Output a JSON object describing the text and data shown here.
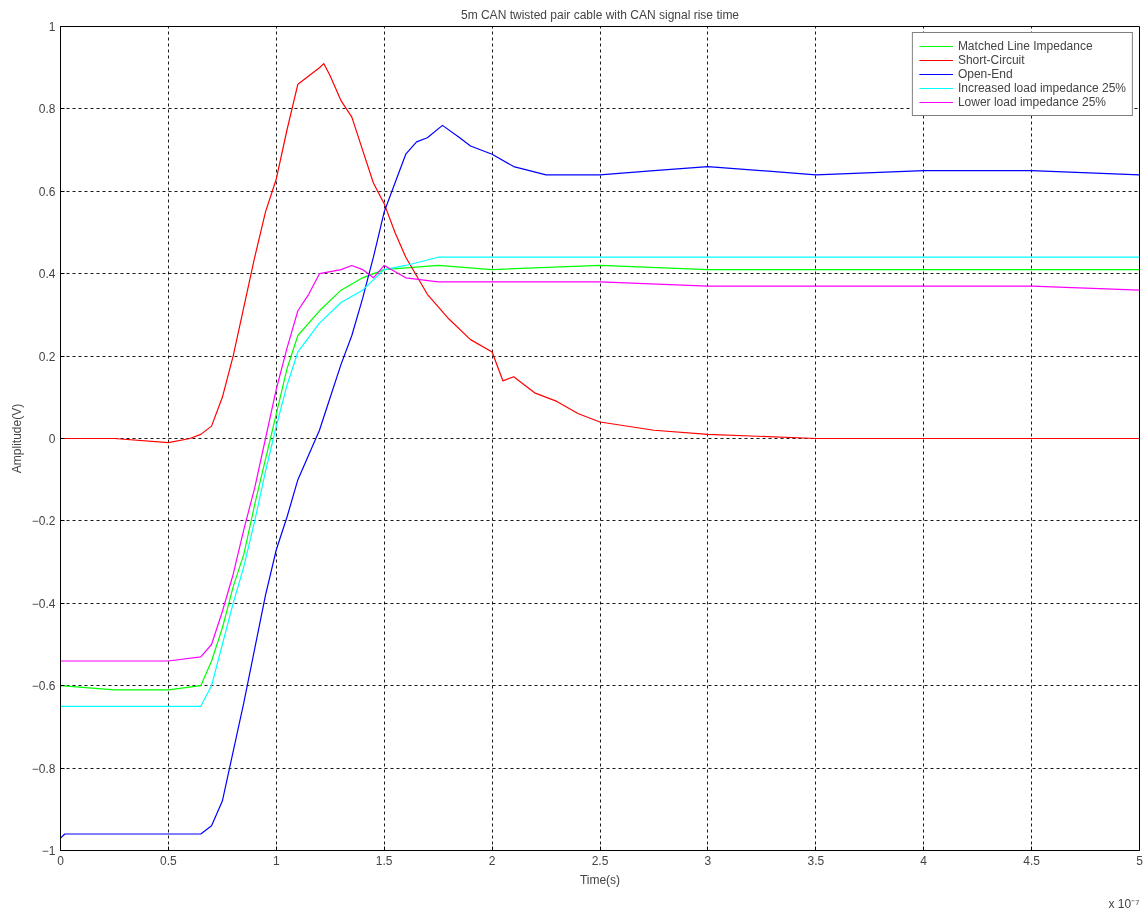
{
  "chart_data": {
    "type": "line",
    "title": "5m CAN twisted pair cable with CAN signal rise time",
    "xlabel": "Time(s)",
    "ylabel": "Amplitude(V)",
    "annotations": [
      "x 10⁻⁷"
    ],
    "xlim": [
      0,
      5
    ],
    "xticks": [
      0,
      0.5,
      1,
      1.5,
      2,
      2.5,
      3,
      3.5,
      4,
      4.5,
      5
    ],
    "ylim": [
      -1,
      1
    ],
    "yticks": [
      -1,
      -0.8,
      -0.6,
      -0.4,
      -0.2,
      0,
      0.2,
      0.4,
      0.6,
      0.8,
      1
    ],
    "grid": true,
    "legend": "top right",
    "line_style": "solid",
    "series": [
      {
        "name": "Matched Line Impedance",
        "color": "#00ff00",
        "x": [
          0,
          0.25,
          0.5,
          0.65,
          0.7,
          0.75,
          0.8,
          0.85,
          0.9,
          0.95,
          1.0,
          1.05,
          1.1,
          1.2,
          1.3,
          1.4,
          1.5,
          1.75,
          2.0,
          2.5,
          3,
          3.5,
          4,
          4.5,
          5
        ],
        "values": [
          -0.6,
          -0.61,
          -0.61,
          -0.6,
          -0.54,
          -0.46,
          -0.36,
          -0.28,
          -0.16,
          -0.05,
          0.06,
          0.17,
          0.25,
          0.31,
          0.36,
          0.39,
          0.41,
          0.42,
          0.41,
          0.42,
          0.41,
          0.41,
          0.41,
          0.41,
          0.41
        ]
      },
      {
        "name": "Short-Circuit",
        "color": "#ff0000",
        "x": [
          0,
          0.25,
          0.5,
          0.6,
          0.65,
          0.7,
          0.75,
          0.8,
          0.85,
          0.9,
          0.95,
          1.0,
          1.05,
          1.1,
          1.15,
          1.2,
          1.22,
          1.25,
          1.3,
          1.35,
          1.4,
          1.45,
          1.5,
          1.55,
          1.6,
          1.7,
          1.8,
          1.9,
          2.0,
          2.05,
          2.1,
          2.2,
          2.3,
          2.4,
          2.5,
          2.75,
          3,
          3.5,
          4,
          4.5,
          5
        ],
        "values": [
          0,
          0,
          -0.01,
          0,
          0.01,
          0.03,
          0.1,
          0.2,
          0.32,
          0.44,
          0.55,
          0.63,
          0.75,
          0.86,
          0.88,
          0.9,
          0.91,
          0.88,
          0.82,
          0.78,
          0.7,
          0.62,
          0.57,
          0.5,
          0.44,
          0.35,
          0.29,
          0.24,
          0.21,
          0.14,
          0.15,
          0.11,
          0.09,
          0.06,
          0.04,
          0.02,
          0.01,
          0,
          0,
          0,
          0
        ]
      },
      {
        "name": "Open-End",
        "color": "#0000ff",
        "x": [
          0,
          0.02,
          0.25,
          0.5,
          0.65,
          0.7,
          0.75,
          0.8,
          0.85,
          0.9,
          0.95,
          1.0,
          1.05,
          1.1,
          1.15,
          1.2,
          1.25,
          1.3,
          1.35,
          1.4,
          1.45,
          1.5,
          1.55,
          1.6,
          1.65,
          1.7,
          1.77,
          1.85,
          1.9,
          2.0,
          2.1,
          2.25,
          2.5,
          2.75,
          3.0,
          3.5,
          4.0,
          4.5,
          5.0
        ],
        "values": [
          -0.97,
          -0.96,
          -0.96,
          -0.96,
          -0.96,
          -0.94,
          -0.88,
          -0.76,
          -0.64,
          -0.51,
          -0.38,
          -0.27,
          -0.19,
          -0.1,
          -0.04,
          0.02,
          0.1,
          0.18,
          0.25,
          0.34,
          0.44,
          0.55,
          0.62,
          0.69,
          0.72,
          0.73,
          0.76,
          0.73,
          0.71,
          0.69,
          0.66,
          0.64,
          0.64,
          0.65,
          0.66,
          0.64,
          0.65,
          0.65,
          0.64
        ]
      },
      {
        "name": "Increased load impedance 25%",
        "color": "#00ffff",
        "x": [
          0,
          0.25,
          0.5,
          0.65,
          0.7,
          0.75,
          0.8,
          0.85,
          0.9,
          0.95,
          1.0,
          1.05,
          1.1,
          1.2,
          1.3,
          1.4,
          1.5,
          1.6,
          1.75,
          2.0,
          2.5,
          3,
          3.5,
          4,
          4.5,
          5
        ],
        "values": [
          -0.65,
          -0.65,
          -0.65,
          -0.65,
          -0.6,
          -0.5,
          -0.4,
          -0.31,
          -0.2,
          -0.08,
          0.03,
          0.13,
          0.21,
          0.28,
          0.33,
          0.36,
          0.41,
          0.42,
          0.44,
          0.44,
          0.44,
          0.44,
          0.44,
          0.44,
          0.44,
          0.44
        ]
      },
      {
        "name": "Lower load impedance 25%",
        "color": "#ff00ff",
        "x": [
          0,
          0.25,
          0.5,
          0.65,
          0.7,
          0.75,
          0.8,
          0.85,
          0.9,
          0.95,
          1.0,
          1.05,
          1.1,
          1.15,
          1.2,
          1.3,
          1.35,
          1.4,
          1.45,
          1.5,
          1.6,
          1.75,
          2.0,
          2.5,
          3,
          3.5,
          4,
          4.5,
          5
        ],
        "values": [
          -0.54,
          -0.54,
          -0.54,
          -0.53,
          -0.5,
          -0.42,
          -0.33,
          -0.22,
          -0.12,
          0.0,
          0.12,
          0.22,
          0.31,
          0.35,
          0.4,
          0.41,
          0.42,
          0.41,
          0.39,
          0.42,
          0.39,
          0.38,
          0.38,
          0.38,
          0.37,
          0.37,
          0.37,
          0.37,
          0.36
        ]
      }
    ]
  }
}
